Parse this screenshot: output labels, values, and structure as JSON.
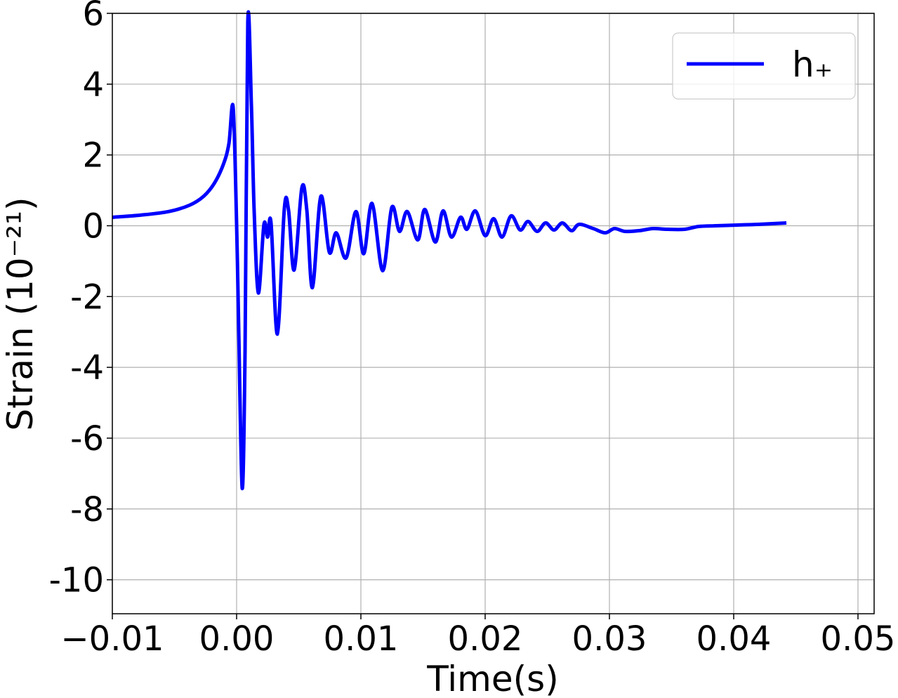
{
  "chart_data": {
    "type": "line",
    "xlabel": "Time(s)",
    "ylabel": "Strain (10⁻²¹)",
    "x": [
      -0.01,
      -0.00774,
      -0.00548,
      -0.00379,
      -0.00266,
      -0.00181,
      -0.00107,
      -0.00062,
      -0.00028,
      0.0,
      0.00017,
      0.00045,
      0.00068,
      0.0009,
      0.00119,
      0.00141,
      0.00175,
      0.0022,
      0.00249,
      0.00277,
      0.00328,
      0.00384,
      0.00418,
      0.00463,
      0.00525,
      0.00565,
      0.0061,
      0.00678,
      0.00746,
      0.00802,
      0.00881,
      0.0096,
      0.01023,
      0.0109,
      0.01175,
      0.01249,
      0.01311,
      0.01373,
      0.01458,
      0.01514,
      0.01599,
      0.01661,
      0.01729,
      0.01802,
      0.01853,
      0.01921,
      0.02,
      0.02068,
      0.02136,
      0.02209,
      0.02282,
      0.02345,
      0.02418,
      0.02486,
      0.02554,
      0.02621,
      0.02695,
      0.02757,
      0.0287,
      0.02966,
      0.0304,
      0.03124,
      0.03237,
      0.0335,
      0.03463,
      0.03605,
      0.03718,
      0.03859,
      0.0403,
      0.04198,
      0.04424
    ],
    "series": [
      {
        "name": "h₊",
        "color": "#0000ff",
        "values": [
          0.24,
          0.3,
          0.4,
          0.58,
          0.83,
          1.19,
          1.73,
          2.32,
          3.35,
          0.04,
          -2.94,
          -7.42,
          -3.53,
          5.75,
          3.41,
          0.44,
          -1.9,
          0.04,
          -0.32,
          0.08,
          -3.06,
          0.48,
          0.44,
          -1.25,
          1.07,
          0.44,
          -1.75,
          0.83,
          -0.75,
          -0.2,
          -0.91,
          0.4,
          -0.79,
          0.63,
          -1.27,
          0.52,
          -0.16,
          0.4,
          -0.4,
          0.46,
          -0.46,
          0.42,
          -0.32,
          0.24,
          -0.1,
          0.42,
          -0.28,
          0.2,
          -0.32,
          0.28,
          -0.12,
          0.12,
          -0.16,
          0.08,
          -0.12,
          0.08,
          -0.14,
          0.04,
          -0.08,
          -0.2,
          -0.08,
          -0.16,
          -0.14,
          -0.08,
          -0.1,
          -0.1,
          -0.02,
          0,
          0.02,
          0.04,
          0.08
        ]
      }
    ],
    "xlim": [
      -0.01,
      0.0513
    ],
    "ylim": [
      -10.96,
      6
    ],
    "xticks": [
      {
        "value": -0.01,
        "label": "−0.01"
      },
      {
        "value": 0,
        "label": "0.00"
      },
      {
        "value": 0.01,
        "label": "0.01"
      },
      {
        "value": 0.02,
        "label": "0.02"
      },
      {
        "value": 0.03,
        "label": "0.03"
      },
      {
        "value": 0.04,
        "label": "0.04"
      },
      {
        "value": 0.05,
        "label": "0.05"
      }
    ],
    "yticks": [
      6,
      4,
      2,
      0,
      -2,
      -4,
      -6,
      -8,
      -10
    ],
    "grid": true,
    "legend": "upper right"
  }
}
